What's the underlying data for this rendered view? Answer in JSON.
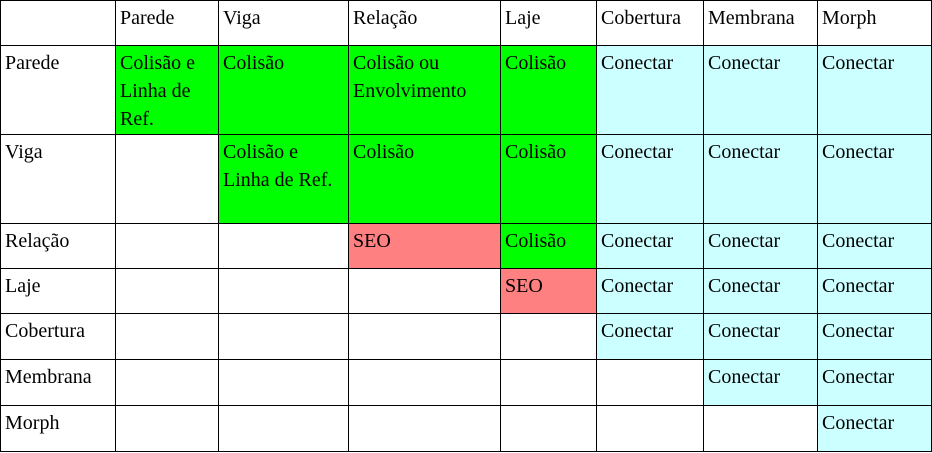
{
  "colors": {
    "green": "#00ff00",
    "red": "#ff8080",
    "cyan": "#ccffff",
    "none": "#ffffff"
  },
  "header": [
    "",
    "Parede",
    "Viga",
    "Relação",
    "Laje",
    "Cobertura",
    "Membrana",
    "Morph"
  ],
  "rows": [
    {
      "label": "Parede",
      "cells": [
        {
          "text": "Colisão e Linha de Ref.",
          "color": "green"
        },
        {
          "text": "Colisão",
          "color": "green"
        },
        {
          "text": "Colisão ou Envolvimento",
          "color": "green"
        },
        {
          "text": "Colisão",
          "color": "green"
        },
        {
          "text": "Conectar",
          "color": "cyan"
        },
        {
          "text": "Conectar",
          "color": "cyan"
        },
        {
          "text": "Conectar",
          "color": "cyan"
        }
      ]
    },
    {
      "label": "Viga",
      "cells": [
        {
          "text": "",
          "color": "none"
        },
        {
          "text": "Colisão e Linha de Ref.",
          "color": "green"
        },
        {
          "text": "Colisão",
          "color": "green"
        },
        {
          "text": "Colisão",
          "color": "green"
        },
        {
          "text": "Conectar",
          "color": "cyan"
        },
        {
          "text": "Conectar",
          "color": "cyan"
        },
        {
          "text": "Conectar",
          "color": "cyan"
        }
      ]
    },
    {
      "label": "Relação",
      "cells": [
        {
          "text": "",
          "color": "none"
        },
        {
          "text": "",
          "color": "none"
        },
        {
          "text": "SEO",
          "color": "red"
        },
        {
          "text": "Colisão",
          "color": "green"
        },
        {
          "text": "Conectar",
          "color": "cyan"
        },
        {
          "text": "Conectar",
          "color": "cyan"
        },
        {
          "text": "Conectar",
          "color": "cyan"
        }
      ]
    },
    {
      "label": "Laje",
      "cells": [
        {
          "text": "",
          "color": "none"
        },
        {
          "text": "",
          "color": "none"
        },
        {
          "text": "",
          "color": "none"
        },
        {
          "text": "SEO",
          "color": "red"
        },
        {
          "text": "Conectar",
          "color": "cyan"
        },
        {
          "text": "Conectar",
          "color": "cyan"
        },
        {
          "text": "Conectar",
          "color": "cyan"
        }
      ]
    },
    {
      "label": "Cobertura",
      "cells": [
        {
          "text": "",
          "color": "none"
        },
        {
          "text": "",
          "color": "none"
        },
        {
          "text": "",
          "color": "none"
        },
        {
          "text": "",
          "color": "none"
        },
        {
          "text": "Conectar",
          "color": "cyan"
        },
        {
          "text": "Conectar",
          "color": "cyan"
        },
        {
          "text": "Conectar",
          "color": "cyan"
        }
      ]
    },
    {
      "label": "Membrana",
      "cells": [
        {
          "text": "",
          "color": "none"
        },
        {
          "text": "",
          "color": "none"
        },
        {
          "text": "",
          "color": "none"
        },
        {
          "text": "",
          "color": "none"
        },
        {
          "text": "",
          "color": "none"
        },
        {
          "text": "Conectar",
          "color": "cyan"
        },
        {
          "text": "Conectar",
          "color": "cyan"
        }
      ]
    },
    {
      "label": "Morph",
      "cells": [
        {
          "text": "",
          "color": "none"
        },
        {
          "text": "",
          "color": "none"
        },
        {
          "text": "",
          "color": "none"
        },
        {
          "text": "",
          "color": "none"
        },
        {
          "text": "",
          "color": "none"
        },
        {
          "text": "",
          "color": "none"
        },
        {
          "text": "Conectar",
          "color": "cyan"
        }
      ]
    }
  ]
}
